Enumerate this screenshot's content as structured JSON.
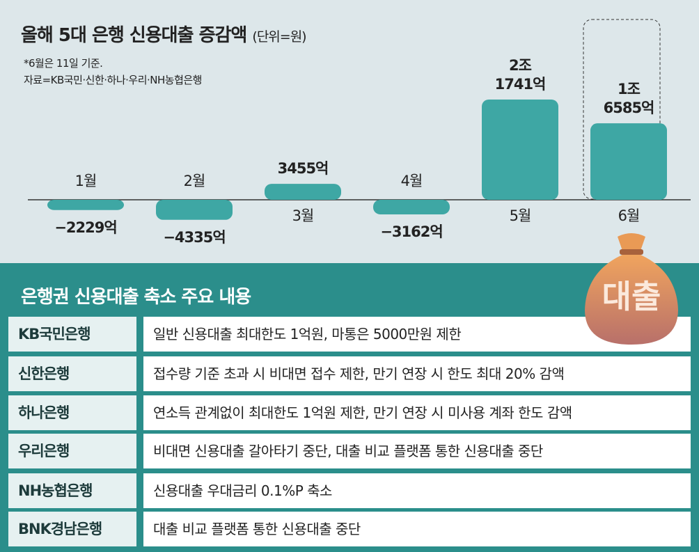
{
  "chart_data": {
    "type": "bar",
    "title": "올해 5대 은행 신용대출 증감액",
    "unit_note": "(단위=원)",
    "notes": [
      "*6월은 11일 기준.",
      "자료=KB국민·신한·하나·우리·NH농협은행"
    ],
    "categories": [
      "1월",
      "2월",
      "3월",
      "4월",
      "5월",
      "6월"
    ],
    "values": [
      -2229,
      -4335,
      3455,
      -3162,
      21741,
      16585
    ],
    "value_labels": [
      "−2229억",
      "−4335억",
      "3455억",
      "−3162억",
      "2조\n1741억",
      "1조\n6585억"
    ],
    "color": "#3ea7a4"
  },
  "icon_label": "대출",
  "table": {
    "title": "은행권 신용대출 축소 주요 내용",
    "rows": [
      [
        "KB국민은행",
        "일반 신용대출 최대한도 1억원, 마통은 5000만원 제한"
      ],
      [
        "신한은행",
        "접수량 기준 초과 시 비대면 접수 제한, 만기 연장 시 한도 최대 20% 감액"
      ],
      [
        "하나은행",
        "연소득 관계없이 최대한도 1억원 제한, 만기 연장 시 미사용 계좌 한도 감액"
      ],
      [
        "우리은행",
        "비대면 신용대출 갈아타기 중단, 대출 비교 플랫폼 통한 신용대출 중단"
      ],
      [
        "NH농협은행",
        "신용대출 우대금리 0.1%P 축소"
      ],
      [
        "BNK경남은행",
        "대출 비교 플랫폼 통한 신용대출 중단"
      ]
    ]
  }
}
